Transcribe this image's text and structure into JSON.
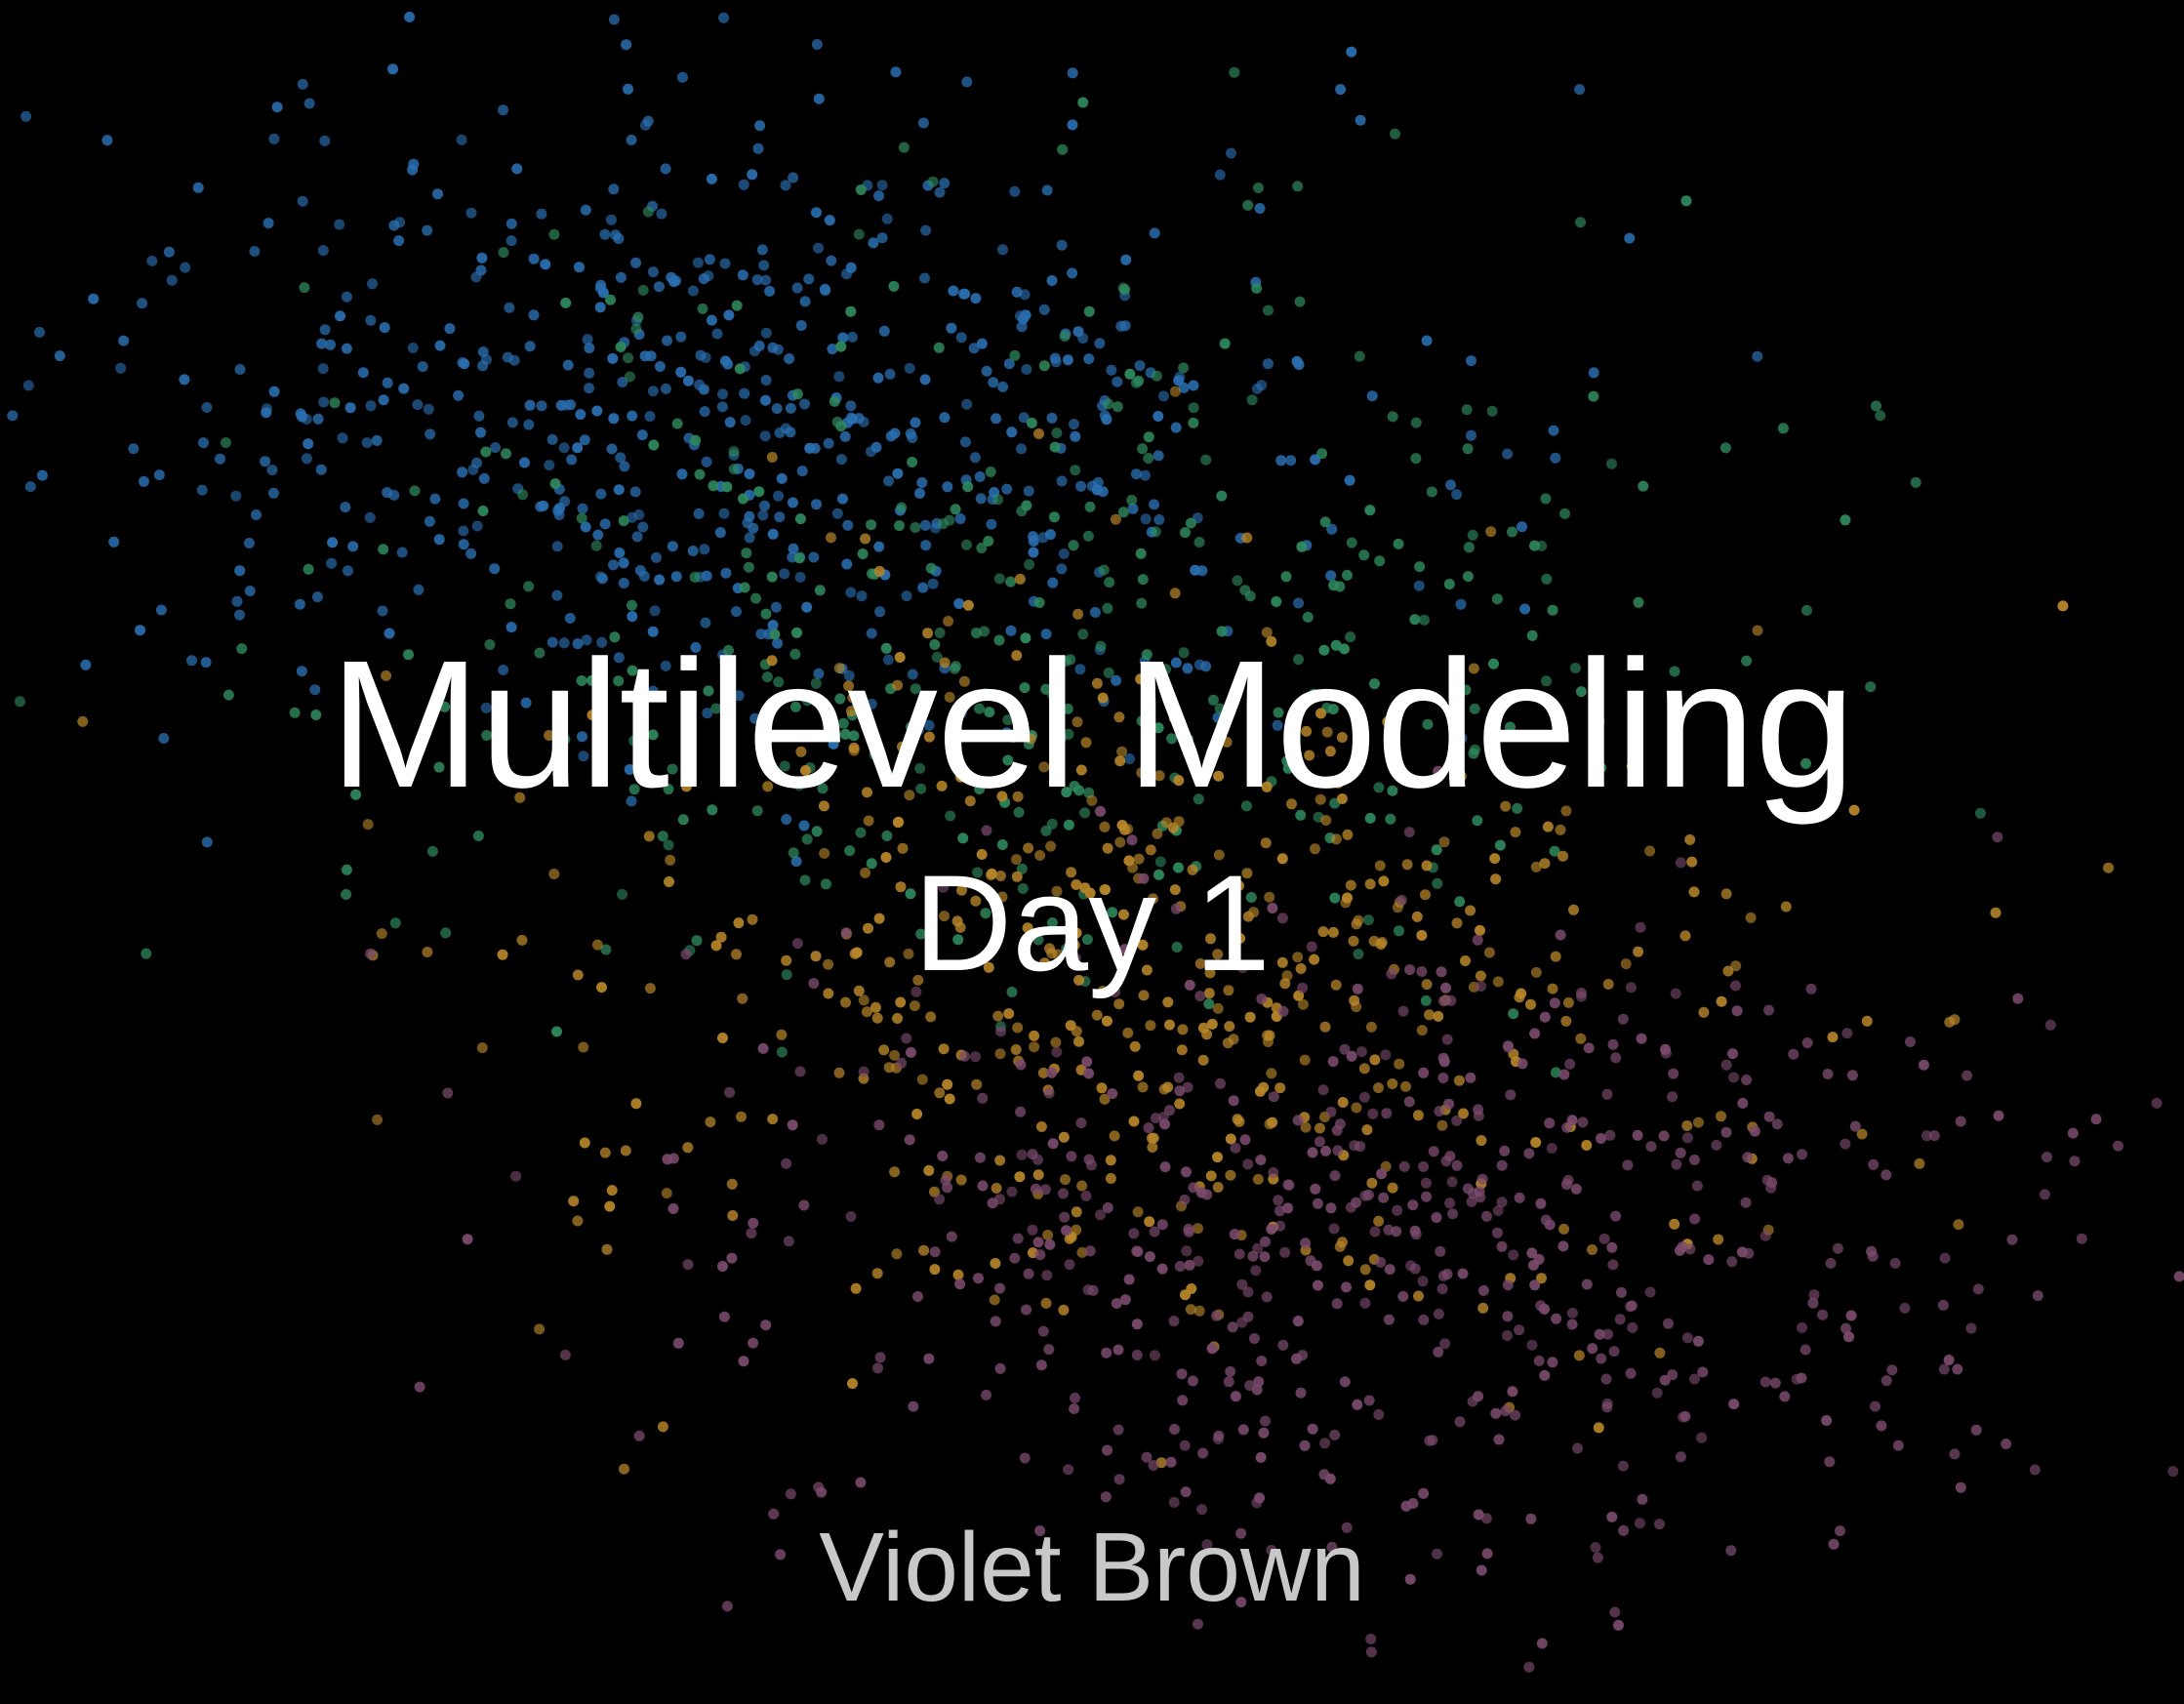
{
  "slide": {
    "title": "Multilevel Modeling",
    "subtitle": "Day 1",
    "author": "Violet Brown"
  },
  "colors": {
    "background": "#000000",
    "title_text": "#ffffff",
    "author_text": "#c8c8c8",
    "cluster_blue": "#2a6fb0",
    "cluster_green": "#2f8a5e",
    "cluster_gold": "#b8862a",
    "cluster_mauve": "#7a4a6c"
  }
}
